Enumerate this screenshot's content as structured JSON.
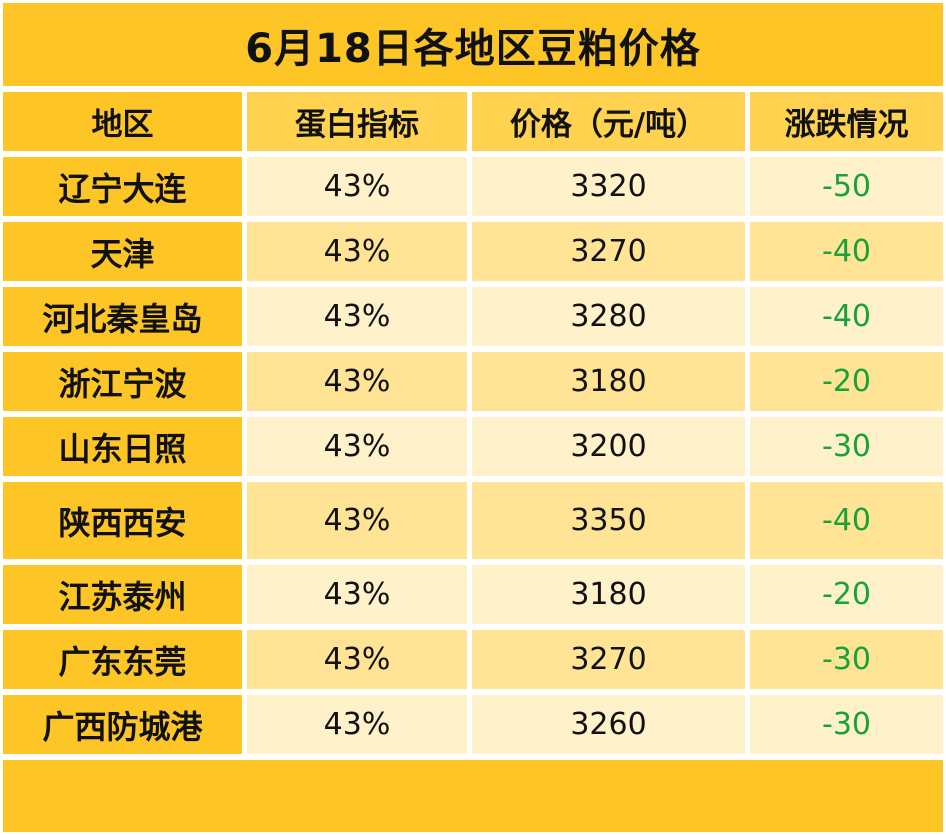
{
  "title": "6月18日各地区豆粕价格",
  "columns": [
    "地区",
    "蛋白指标",
    "价格（元/吨）",
    "涨跌情况"
  ],
  "rows": [
    {
      "region": "辽宁大连",
      "protein": "43%",
      "price": "3320",
      "change": "-50"
    },
    {
      "region": "天津",
      "protein": "43%",
      "price": "3270",
      "change": "-40"
    },
    {
      "region": "河北秦皇岛",
      "protein": "43%",
      "price": "3280",
      "change": "-40"
    },
    {
      "region": "浙江宁波",
      "protein": "43%",
      "price": "3180",
      "change": "-20"
    },
    {
      "region": "山东日照",
      "protein": "43%",
      "price": "3200",
      "change": "-30"
    },
    {
      "region": "陕西西安",
      "protein": "43%",
      "price": "3350",
      "change": "-40"
    },
    {
      "region": "江苏泰州",
      "protein": "43%",
      "price": "3180",
      "change": "-20"
    },
    {
      "region": "广东东莞",
      "protein": "43%",
      "price": "3270",
      "change": "-30"
    },
    {
      "region": "广西防城港",
      "protein": "43%",
      "price": "3260",
      "change": "-30"
    }
  ],
  "colors": {
    "header_yellow": "#FDC526",
    "change_green": "#18A33A"
  }
}
